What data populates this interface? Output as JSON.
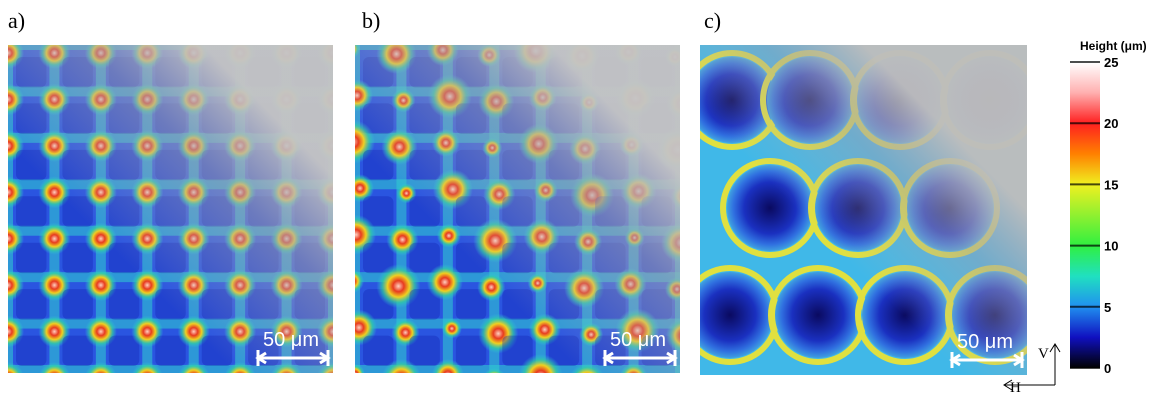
{
  "panels": [
    {
      "label": "a)",
      "scale_bar": "50 μm"
    },
    {
      "label": "b)",
      "scale_bar": "50 μm"
    },
    {
      "label": "c)",
      "scale_bar": "50 μm"
    }
  ],
  "colorbar": {
    "title": "Height (μm)",
    "ticks": [
      0,
      5,
      10,
      15,
      20,
      25
    ]
  },
  "axes_indicator": {
    "vertical": "V",
    "horizontal": "H"
  }
}
